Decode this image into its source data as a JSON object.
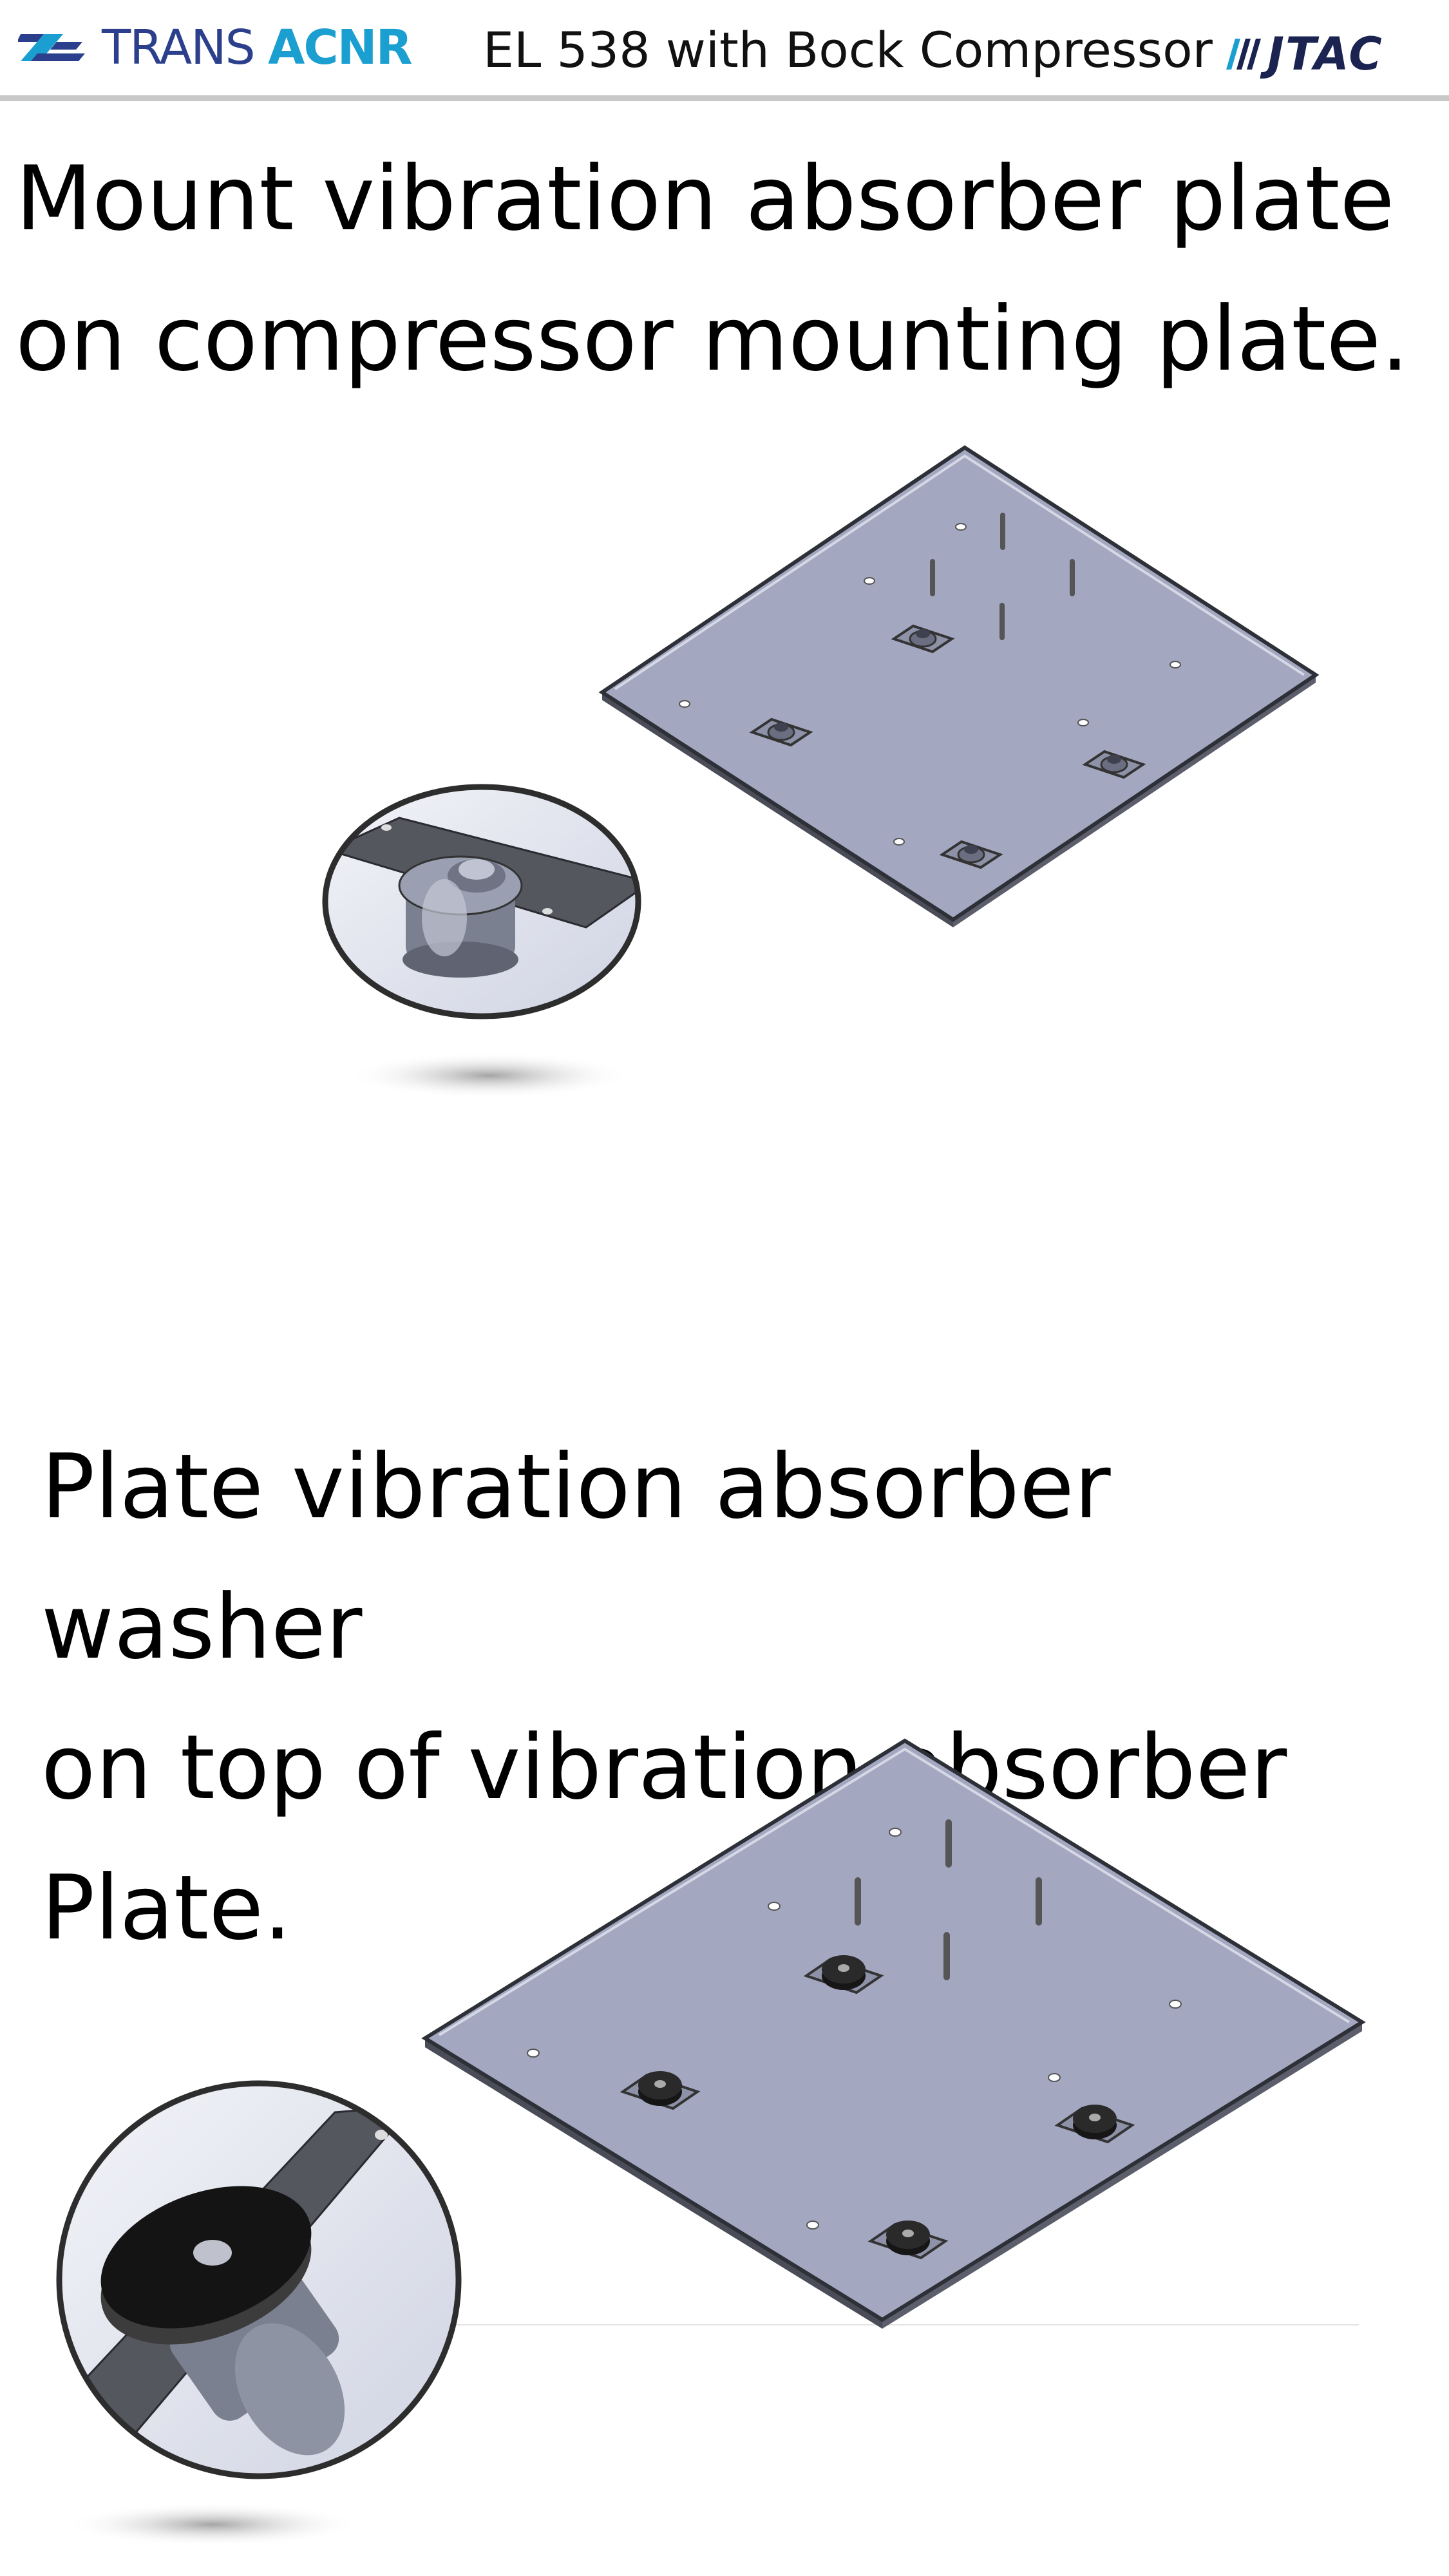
{
  "header": {
    "logo_left": "TRANS ACNR",
    "logo_left_part1": "TRANS ",
    "logo_left_part2": "ACNR",
    "title": "EL 538 with Bock Compressor",
    "logo_right": "JTAC"
  },
  "steps": [
    {
      "text": "Mount vibration absorber plate\non compressor mounting plate."
    },
    {
      "text": "Plate vibration absorber washer\non top of vibration absorber\nPlate."
    }
  ],
  "colors": {
    "plate_fill": "#a3a7c0",
    "plate_edge": "#3a3c48",
    "brand_dark": "#2b3f8c",
    "brand_light": "#1a9fd0",
    "rule": "#c8c8c8"
  }
}
